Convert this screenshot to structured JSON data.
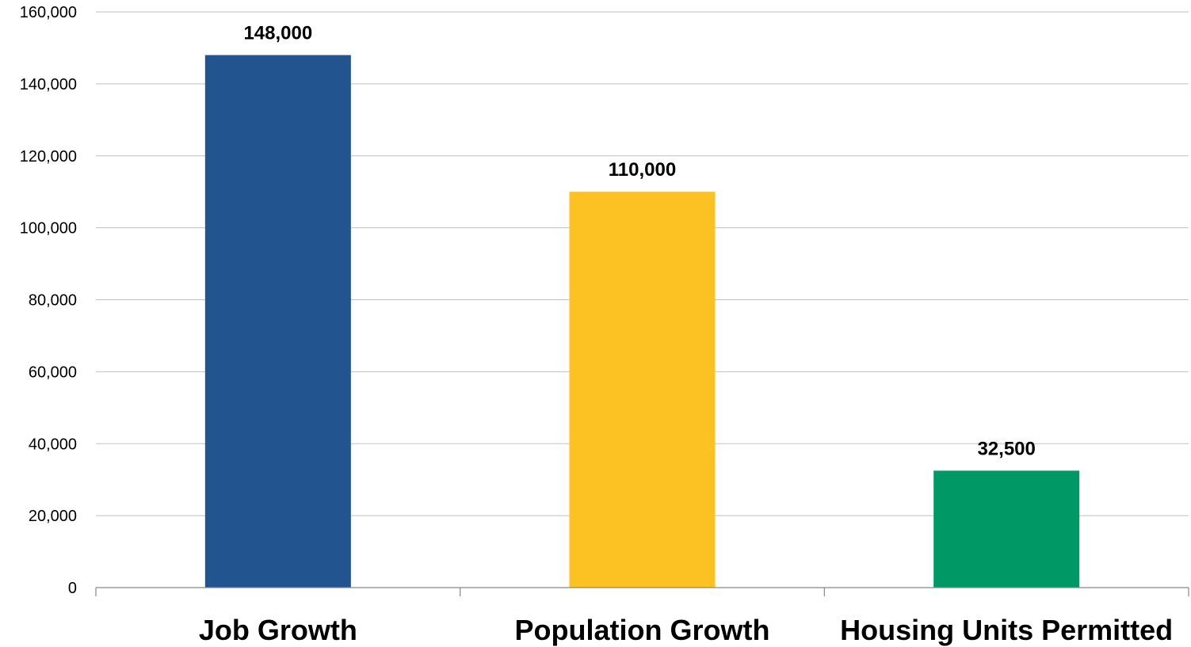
{
  "chart_data": {
    "type": "bar",
    "title": "",
    "xlabel": "",
    "ylabel": "",
    "categories": [
      "Job Growth",
      "Population Growth",
      "Housing Units Permitted"
    ],
    "values": [
      148000,
      110000,
      32500
    ],
    "value_labels": [
      "148,000",
      "110,000",
      "32,500"
    ],
    "colors": [
      "#22558F",
      "#FCC123",
      "#009966"
    ],
    "ylim": [
      0,
      160000
    ],
    "yticks": [
      0,
      20000,
      40000,
      60000,
      80000,
      100000,
      120000,
      140000,
      160000
    ],
    "ytick_labels": [
      "0",
      "20,000",
      "40,000",
      "60,000",
      "80,000",
      "100,000",
      "120,000",
      "140,000",
      "160,000"
    ],
    "grid": true,
    "legend": "none"
  }
}
